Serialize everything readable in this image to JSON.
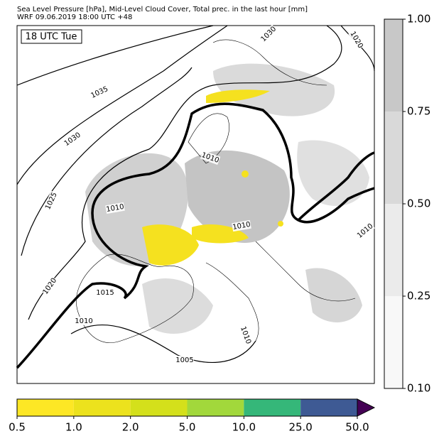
{
  "header": {
    "title": "Sea Level Pressure [hPa], Mid-Level Cloud Cover, Total prec. in the last hour [mm]",
    "subtitle": "WRF 09.06.2019 18:00 UTC +48"
  },
  "time_label": "18 UTC Tue",
  "isobar_labels": [
    "1035",
    "1030",
    "1025",
    "1020",
    "1015",
    "1010",
    "1010",
    "1010",
    "1010",
    "1010",
    "1005",
    "1010",
    "1030",
    "1020"
  ],
  "cloud_colorbar": {
    "ticks": [
      "1.00",
      "0.75",
      "0.50",
      "0.25",
      "0.10"
    ],
    "colors": [
      "#c8c8c8",
      "#d9d9d9",
      "#ebebeb",
      "#f8f8f8"
    ]
  },
  "precip_colorbar": {
    "ticks": [
      "0.5",
      "1.0",
      "2.0",
      "5.0",
      "10.0",
      "25.0",
      "50.0"
    ],
    "colors": [
      "#fde725",
      "#ece21d",
      "#d4e01b",
      "#a2d83b",
      "#35b779",
      "#3e5a94",
      "#440154"
    ]
  }
}
